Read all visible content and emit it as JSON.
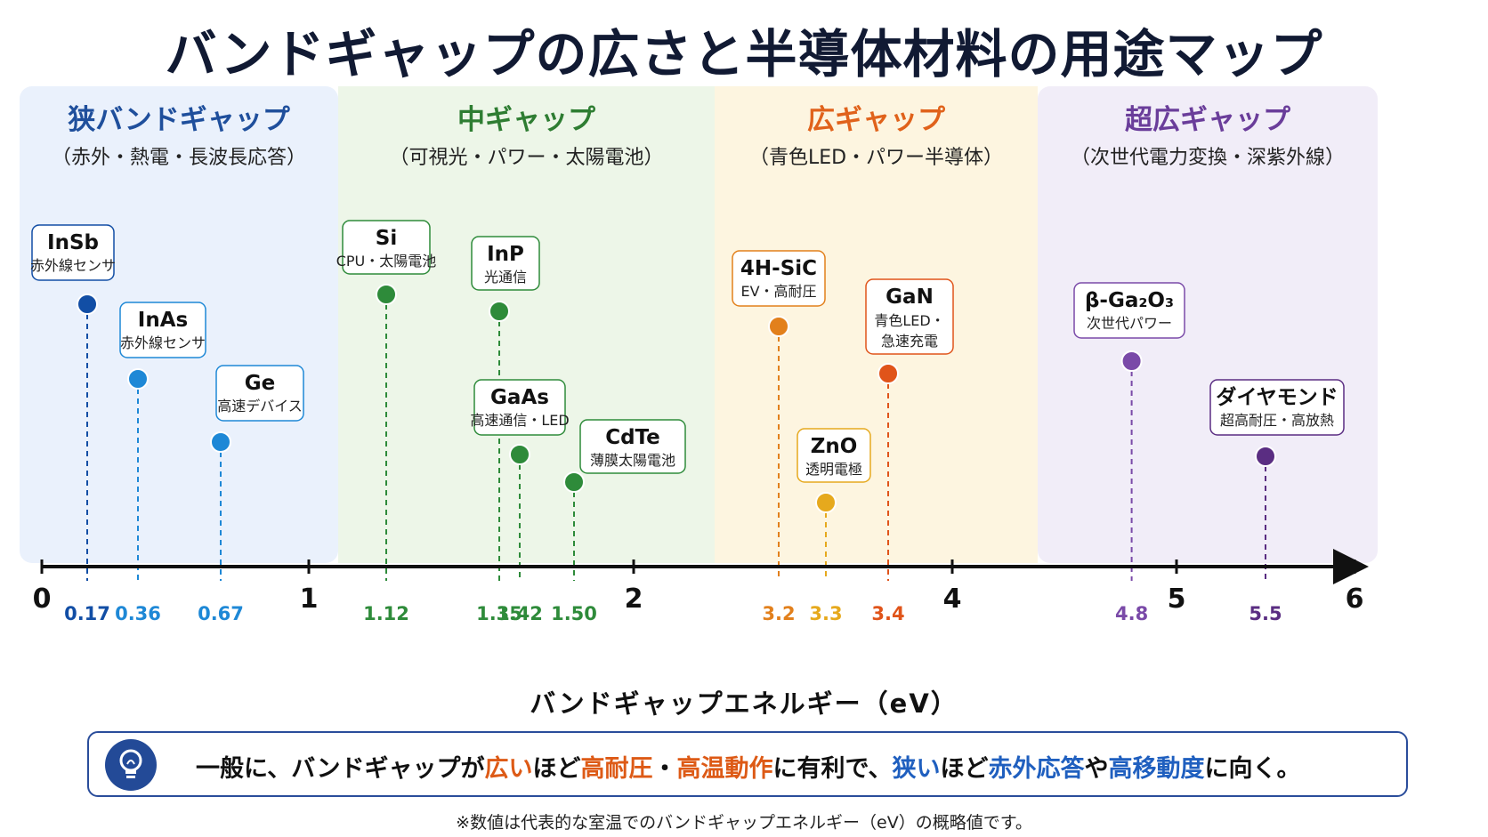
{
  "title": "バンドギャップの広さと半導体材料の用途マップ",
  "bands": [
    {
      "title": "狭バンドギャップ",
      "subtitle": "（赤外・熱電・長波長応答）",
      "color": "#1f4f9c",
      "bg": "#eaf1fc",
      "from": 0,
      "to": 1.1
    },
    {
      "title": "中ギャップ",
      "subtitle": "（可視光・パワー・太陽電池）",
      "color": "#2e7d32",
      "bg": "#edf6e8",
      "from": 1.1,
      "to": 2.5
    },
    {
      "title": "広ギャップ",
      "subtitle": "（青色LED・パワー半導体）",
      "color": "#e0621b",
      "bg": "#fdf5e0",
      "from": 2.5,
      "to": 4.5
    },
    {
      "title": "超広ギャップ",
      "subtitle": "（次世代電力変換・深紫外線）",
      "color": "#6a3d9a",
      "bg": "#f1edf8",
      "from": 4.5,
      "to": 6
    }
  ],
  "chart_data": {
    "type": "scatter",
    "xlabel": "バンドギャップエネルギー（eV）",
    "xlim": [
      0,
      6
    ],
    "major_ticks": [
      "0",
      "1",
      "2",
      "4",
      "5",
      "6"
    ],
    "points": [
      {
        "material": "InSb",
        "use": "赤外線センサ",
        "x": 0.17,
        "x_label": "0.17",
        "color": "#124ea5"
      },
      {
        "material": "InAs",
        "use": "赤外線センサ",
        "x": 0.36,
        "x_label": "0.36",
        "color": "#1e88d6"
      },
      {
        "material": "Ge",
        "use": "高速デバイス",
        "x": 0.67,
        "x_label": "0.67",
        "color": "#1e88d6"
      },
      {
        "material": "Si",
        "use": "CPU・太陽電池",
        "x": 1.12,
        "x_label": "1.12",
        "color": "#2e8b3a"
      },
      {
        "material": "InP",
        "use": "光通信",
        "x": 1.35,
        "x_label": "1.35",
        "color": "#2e8b3a"
      },
      {
        "material": "GaAs",
        "use": "高速通信・LED",
        "x": 1.42,
        "x_label": "1.42",
        "color": "#2e8b3a"
      },
      {
        "material": "CdTe",
        "use": "薄膜太陽電池",
        "x": 1.5,
        "x_label": "1.50",
        "color": "#2e8b3a"
      },
      {
        "material": "4H-SiC",
        "use": "EV・高耐圧",
        "x": 3.2,
        "x_label": "3.2",
        "color": "#e2801c"
      },
      {
        "material": "ZnO",
        "use": "透明電極",
        "x": 3.3,
        "x_label": "3.3",
        "color": "#e6a91d"
      },
      {
        "material": "GaN",
        "use": "青色LED・急速充電",
        "x": 3.4,
        "x_label": "3.4",
        "color": "#e0541a"
      },
      {
        "material": "β-Ga₂O₃",
        "use": "次世代パワー",
        "x": 4.8,
        "x_label": "4.8",
        "color": "#7a4aa8"
      },
      {
        "material": "ダイヤモンド",
        "use": "超高耐圧・高放熱",
        "x": 5.5,
        "x_label": "5.5",
        "color": "#5a2d82"
      }
    ]
  },
  "info": {
    "t1": "一般に、バンドギャップが",
    "t2": "広い",
    "t3": "ほど",
    "t4": "高耐圧",
    "t5": "・",
    "t6": "高温動作",
    "t7": "に有利で、",
    "t8": "狭い",
    "t9": "ほど",
    "t10": "赤外応答",
    "t11": "や",
    "t12": "高移動度",
    "t13": "に向く。"
  },
  "footnote": "※数値は代表的な室温でのバンドギャップエネルギー（eV）の概略値です。",
  "icon": "lightbulb-icon"
}
